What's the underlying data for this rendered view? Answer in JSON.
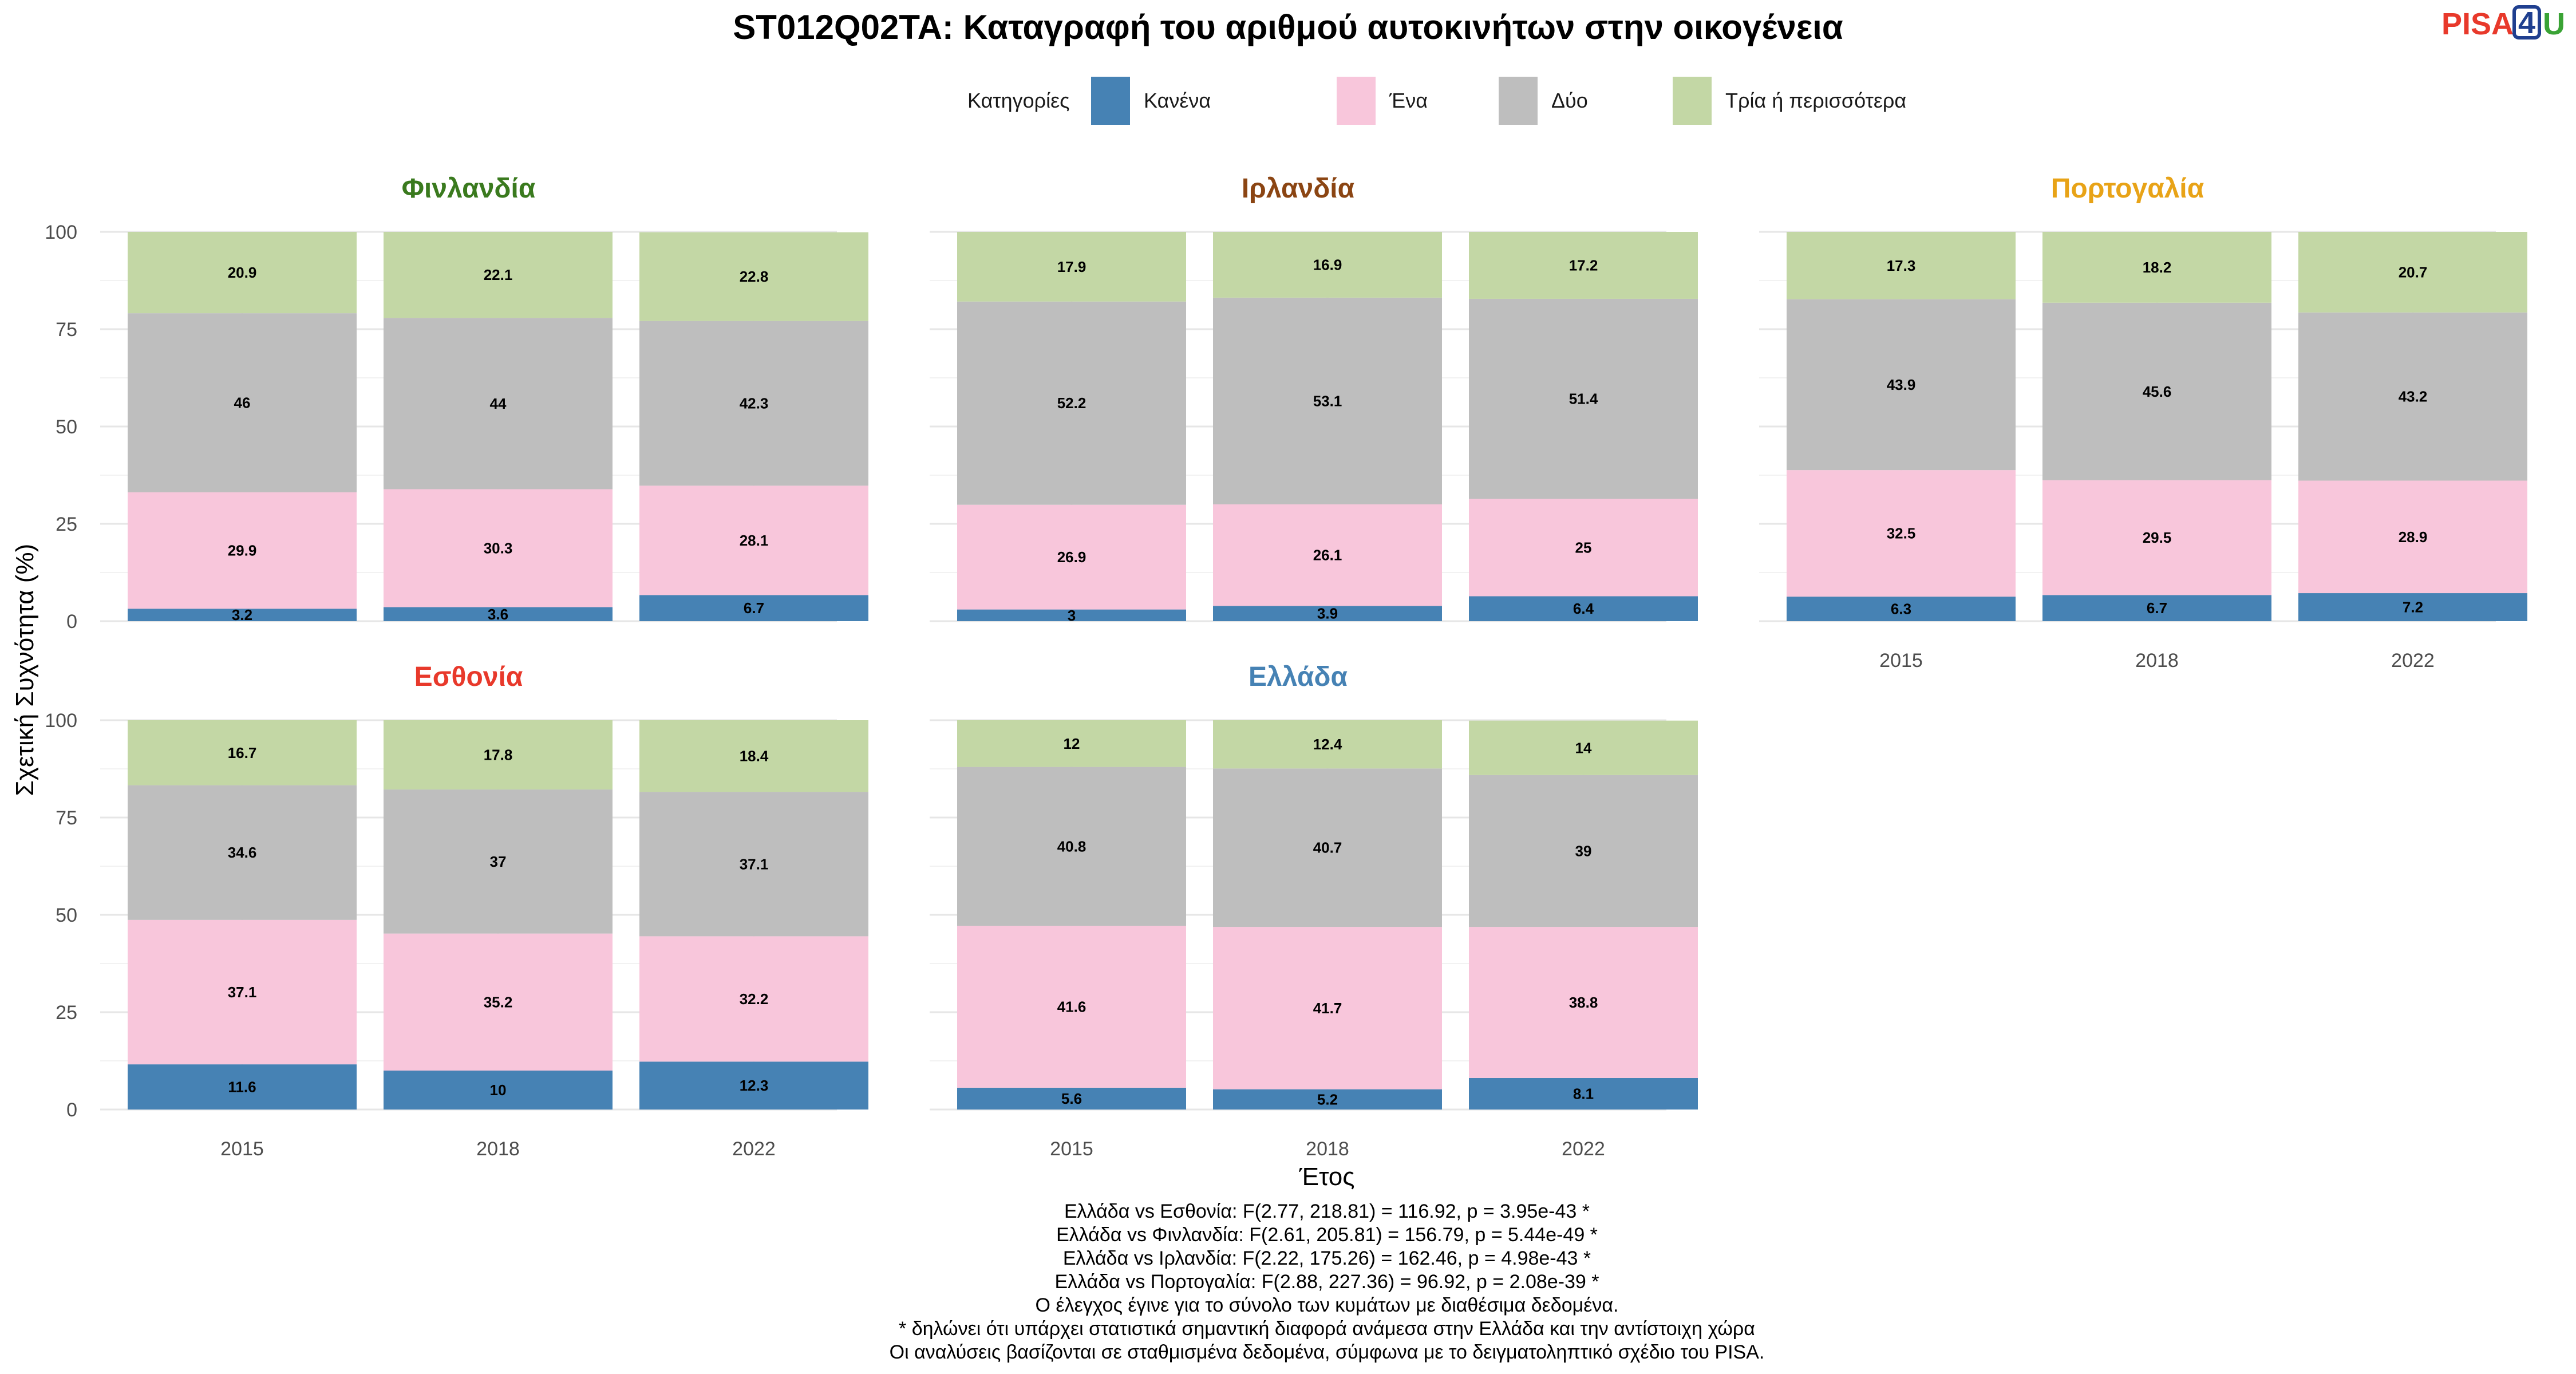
{
  "chart_data": {
    "type": "bar",
    "stacked": true,
    "title": "ST012Q02TA: Καταγραφή του αριθμού αυτοκινήτων στην οικογένεια",
    "xlabel": "Έτος",
    "ylabel": "Σχετική Συχνότητα (%)",
    "ylim": [
      0,
      100
    ],
    "yticks": [
      0,
      25,
      50,
      75,
      100
    ],
    "grid": true,
    "legend": {
      "title": "Κατηγορίες",
      "placement": "top",
      "entries": [
        {
          "label": "Κανένα",
          "color": "#4682B4"
        },
        {
          "label": "Ένα",
          "color": "#F8C6DB"
        },
        {
          "label": "Δύο",
          "color": "#BEBEBE"
        },
        {
          "label": "Τρία ή περισσότερα",
          "color": "#C3D7A5"
        }
      ]
    },
    "categories": [
      "2015",
      "2018",
      "2022"
    ],
    "panels": [
      {
        "name": "Φινλανδία",
        "color": "#3A7A1E",
        "values": {
          "2015": [
            3.2,
            29.9,
            46,
            20.9
          ],
          "2018": [
            3.6,
            30.3,
            44,
            22.1
          ],
          "2022": [
            6.7,
            28.1,
            42.3,
            22.8
          ]
        }
      },
      {
        "name": "Ιρλανδία",
        "color": "#8B4513",
        "values": {
          "2015": [
            3,
            26.9,
            52.2,
            17.9
          ],
          "2018": [
            3.9,
            26.1,
            53.1,
            16.9
          ],
          "2022": [
            6.4,
            25,
            51.4,
            17.2
          ]
        }
      },
      {
        "name": "Πορτογαλία",
        "color": "#E8A317",
        "values": {
          "2015": [
            6.3,
            32.5,
            43.9,
            17.3
          ],
          "2018": [
            6.7,
            29.5,
            45.6,
            18.2
          ],
          "2022": [
            7.2,
            28.9,
            43.2,
            20.7
          ]
        }
      },
      {
        "name": "Εσθονία",
        "color": "#E8392B",
        "values": {
          "2015": [
            11.6,
            37.1,
            34.6,
            16.7
          ],
          "2018": [
            10,
            35.2,
            37,
            17.8
          ],
          "2022": [
            12.3,
            32.2,
            37.1,
            18.4
          ]
        }
      },
      {
        "name": "Ελλάδα",
        "color": "#4682B4",
        "values": {
          "2015": [
            5.6,
            41.6,
            40.8,
            12
          ],
          "2018": [
            5.2,
            41.7,
            40.7,
            12.4
          ],
          "2022": [
            8.1,
            38.8,
            39,
            14
          ]
        }
      }
    ],
    "caption": [
      "Ελλάδα vs Εσθονία: F(2.77, 218.81) = 116.92, p = 3.95e-43 *",
      "Ελλάδα vs Φινλανδία: F(2.61, 205.81) = 156.79, p = 5.44e-49 *",
      "Ελλάδα vs Ιρλανδία: F(2.22, 175.26) = 162.46, p = 4.98e-43 *",
      "Ελλάδα vs Πορτογαλία: F(2.88, 227.36) = 96.92, p = 2.08e-39 *",
      "Ο έλεγχος έγινε για το σύνολο των κυμάτων με διαθέσιμα δεδομένα.",
      "* δηλώνει ότι υπάρχει στατιστικά σημαντική διαφορά ανάμεσα στην Ελλάδα και την αντίστοιχη χώρα",
      "Οι αναλύσεις βασίζονται σε σταθμισμένα δεδομένα, σύμφωνα με το δειγματοληπτικό σχέδιο του PISA."
    ]
  },
  "logo": {
    "text_left": "PISA",
    "text_box": "4",
    "text_right": "U",
    "color_left": "#E8392B",
    "color_box": "#1F3F8F",
    "color_right": "#3AA335"
  }
}
